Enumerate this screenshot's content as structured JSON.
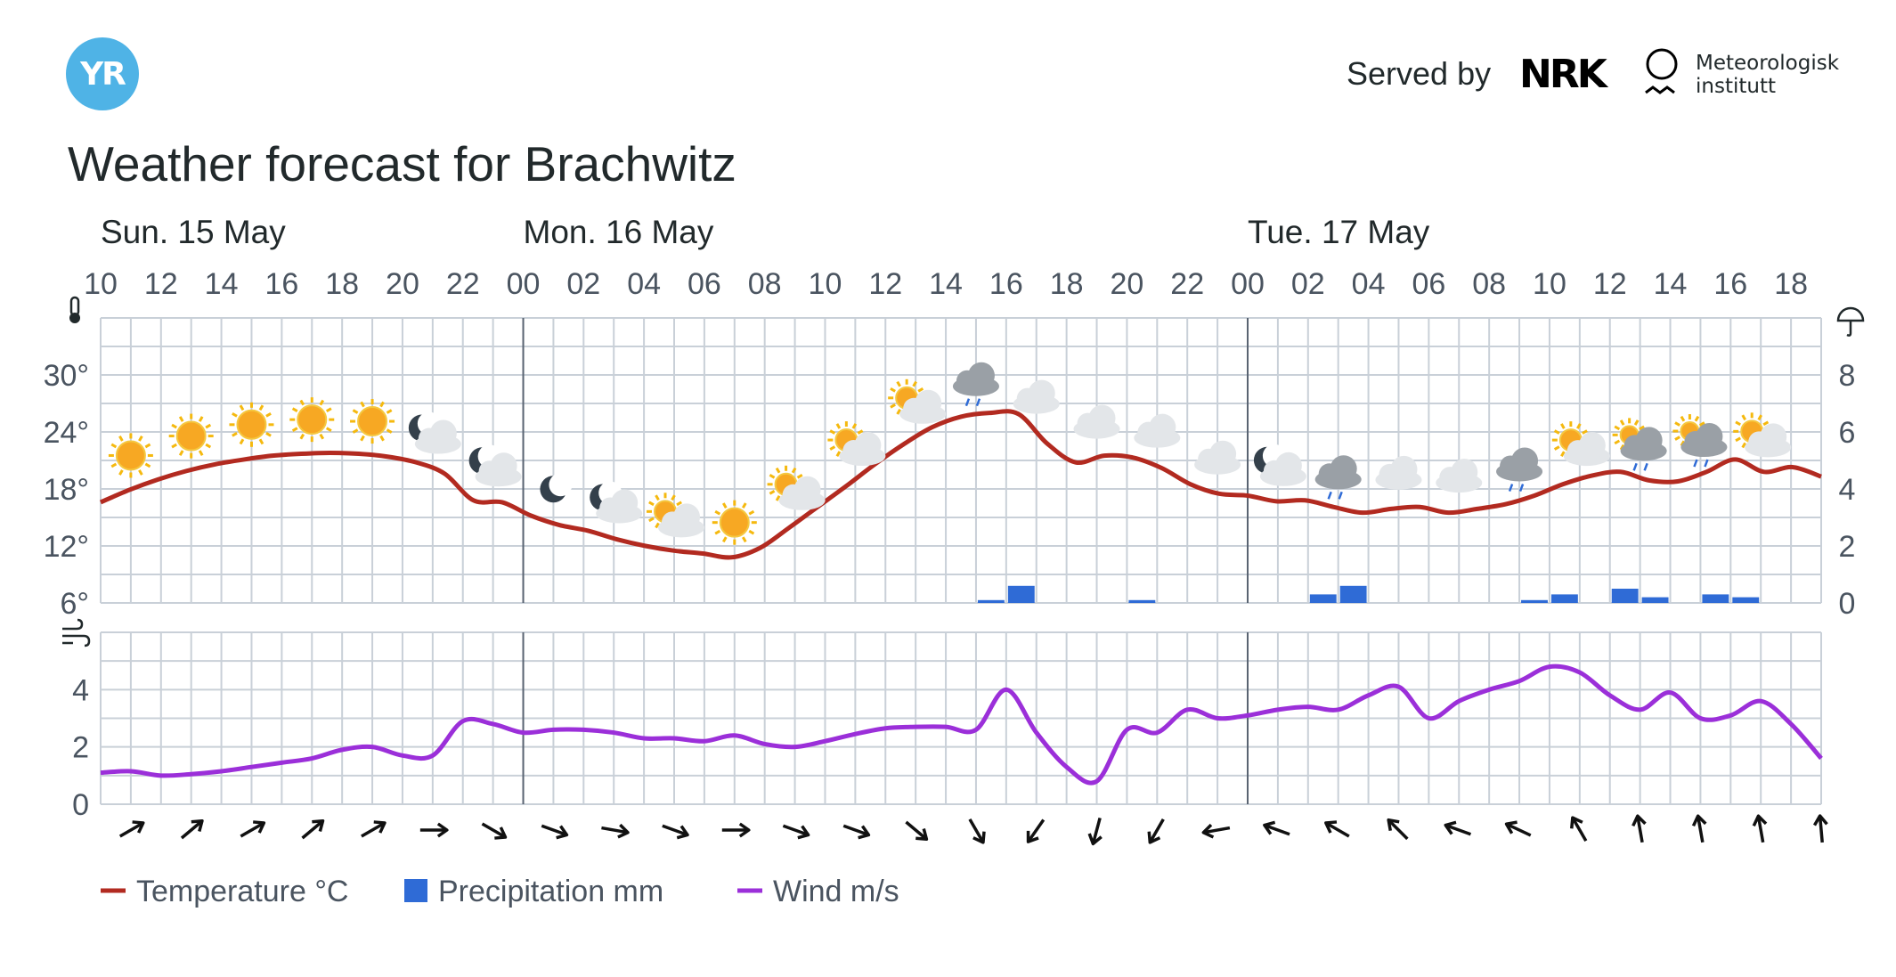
{
  "header": {
    "logo_text": "YR",
    "served_by": "Served by",
    "nrk_logo": "NRK",
    "met_name_line1": "Meteorologisk",
    "met_name_line2": "institutt",
    "title": "Weather forecast for Brachwitz"
  },
  "chart_data": {
    "type": "line",
    "days": [
      {
        "label": "Sun. 15 May",
        "hour_index": 0
      },
      {
        "label": "Mon. 16 May",
        "hour_index": 14
      },
      {
        "label": "Tue. 17 May",
        "hour_index": 38
      }
    ],
    "hour_labels": [
      "10",
      "12",
      "14",
      "16",
      "18",
      "20",
      "22",
      "00",
      "02",
      "04",
      "06",
      "08",
      "10",
      "12",
      "14",
      "16",
      "18",
      "20",
      "22",
      "00",
      "02",
      "04",
      "06",
      "08",
      "10",
      "12",
      "14",
      "16",
      "18"
    ],
    "temperature": {
      "name": "Temperature °C",
      "color": "#b22a20",
      "y_ticks": [
        "30°",
        "24°",
        "18°",
        "12°",
        "6°"
      ],
      "ylim": [
        6,
        36
      ],
      "values": [
        16.6,
        17.9,
        19.0,
        19.9,
        20.6,
        21.1,
        21.5,
        21.7,
        21.8,
        21.7,
        21.4,
        20.8,
        19.6,
        16.8,
        16.6,
        15.2,
        14.2,
        13.6,
        12.7,
        12.0,
        11.5,
        11.2,
        10.8,
        11.8,
        13.9,
        16.1,
        18.3,
        20.6,
        22.7,
        24.5,
        25.6,
        26.0,
        25.9,
        22.8,
        20.8,
        21.5,
        21.3,
        20.2,
        18.5,
        17.5,
        17.3,
        16.7,
        16.8,
        16.1,
        15.5,
        15.9,
        16.1,
        15.5,
        15.9,
        16.4,
        17.3,
        18.5,
        19.4,
        19.8,
        18.9,
        18.8,
        19.8,
        21.1,
        19.8,
        20.3,
        19.3
      ]
    },
    "precipitation": {
      "name": "Precipitation mm",
      "color": "#2f6bd6",
      "y_ticks": [
        "8",
        "6",
        "4",
        "2",
        "0"
      ],
      "ylim": [
        0,
        10
      ],
      "bars": [
        {
          "hour_index": 29,
          "value": 0.1
        },
        {
          "hour_index": 30,
          "value": 0.6
        },
        {
          "hour_index": 34,
          "value": 0.1
        },
        {
          "hour_index": 40,
          "value": 0.3
        },
        {
          "hour_index": 41,
          "value": 0.6
        },
        {
          "hour_index": 47,
          "value": 0.1
        },
        {
          "hour_index": 48,
          "value": 0.3
        },
        {
          "hour_index": 50,
          "value": 0.5
        },
        {
          "hour_index": 51,
          "value": 0.2
        },
        {
          "hour_index": 53,
          "value": 0.3
        },
        {
          "hour_index": 54,
          "value": 0.2
        }
      ]
    },
    "wind": {
      "name": "Wind m/s",
      "color": "#9b2fd9",
      "y_ticks": [
        "4",
        "2",
        "0"
      ],
      "ylim": [
        0,
        6
      ],
      "values": [
        1.1,
        1.15,
        1.0,
        1.05,
        1.15,
        1.3,
        1.45,
        1.6,
        1.9,
        2.0,
        1.7,
        1.7,
        2.9,
        2.8,
        2.5,
        2.6,
        2.6,
        2.5,
        2.3,
        2.3,
        2.2,
        2.4,
        2.1,
        2.0,
        2.2,
        2.45,
        2.65,
        2.7,
        2.7,
        2.6,
        4.0,
        2.5,
        1.3,
        0.8,
        2.6,
        2.5,
        3.3,
        3.0,
        3.1,
        3.3,
        3.4,
        3.3,
        3.8,
        4.1,
        3.0,
        3.6,
        4.0,
        4.3,
        4.8,
        4.6,
        3.8,
        3.3,
        3.9,
        3.0,
        3.1,
        3.6,
        2.8,
        1.6
      ],
      "directions_deg": [
        240,
        230,
        240,
        230,
        240,
        270,
        300,
        290,
        280,
        290,
        270,
        290,
        290,
        310,
        330,
        35,
        15,
        30,
        80,
        110,
        120,
        135,
        110,
        115,
        150,
        170,
        170,
        170,
        175
      ]
    },
    "weather_icons": [
      {
        "hour_index": 1,
        "icon": "sun-icon"
      },
      {
        "hour_index": 3,
        "icon": "sun-icon"
      },
      {
        "hour_index": 5,
        "icon": "sun-icon"
      },
      {
        "hour_index": 7,
        "icon": "sun-icon"
      },
      {
        "hour_index": 9,
        "icon": "sun-icon"
      },
      {
        "hour_index": 11,
        "icon": "moon-cloud-icon"
      },
      {
        "hour_index": 13,
        "icon": "moon-cloud-icon"
      },
      {
        "hour_index": 15,
        "icon": "moon-icon"
      },
      {
        "hour_index": 17,
        "icon": "moon-cloud-icon"
      },
      {
        "hour_index": 19,
        "icon": "sun-cloud-icon"
      },
      {
        "hour_index": 21,
        "icon": "sun-icon"
      },
      {
        "hour_index": 23,
        "icon": "sun-cloud-icon"
      },
      {
        "hour_index": 25,
        "icon": "sun-cloud-icon"
      },
      {
        "hour_index": 27,
        "icon": "sun-cloud-icon"
      },
      {
        "hour_index": 29,
        "icon": "rain-cloud-icon"
      },
      {
        "hour_index": 31,
        "icon": "cloud-icon"
      },
      {
        "hour_index": 33,
        "icon": "cloud-icon"
      },
      {
        "hour_index": 35,
        "icon": "cloud-icon"
      },
      {
        "hour_index": 37,
        "icon": "cloud-icon"
      },
      {
        "hour_index": 39,
        "icon": "moon-cloud-icon"
      },
      {
        "hour_index": 41,
        "icon": "rain-cloud-icon"
      },
      {
        "hour_index": 43,
        "icon": "cloud-icon"
      },
      {
        "hour_index": 45,
        "icon": "cloud-icon"
      },
      {
        "hour_index": 47,
        "icon": "rain-cloud-icon"
      },
      {
        "hour_index": 49,
        "icon": "sun-cloud-icon"
      },
      {
        "hour_index": 51,
        "icon": "sun-rain-cloud-icon"
      },
      {
        "hour_index": 53,
        "icon": "sun-rain-cloud-icon"
      },
      {
        "hour_index": 55,
        "icon": "sun-cloud-icon"
      }
    ],
    "legend": [
      {
        "label": "Temperature °C",
        "swatch": "line",
        "color": "#b22a20"
      },
      {
        "label": "Precipitation mm",
        "swatch": "square",
        "color": "#2f6bd6"
      },
      {
        "label": "Wind m/s",
        "swatch": "line",
        "color": "#9b2fd9"
      }
    ],
    "grid": true,
    "day_separator_color": "#5a6472",
    "grid_color": "#c9d0d8"
  }
}
